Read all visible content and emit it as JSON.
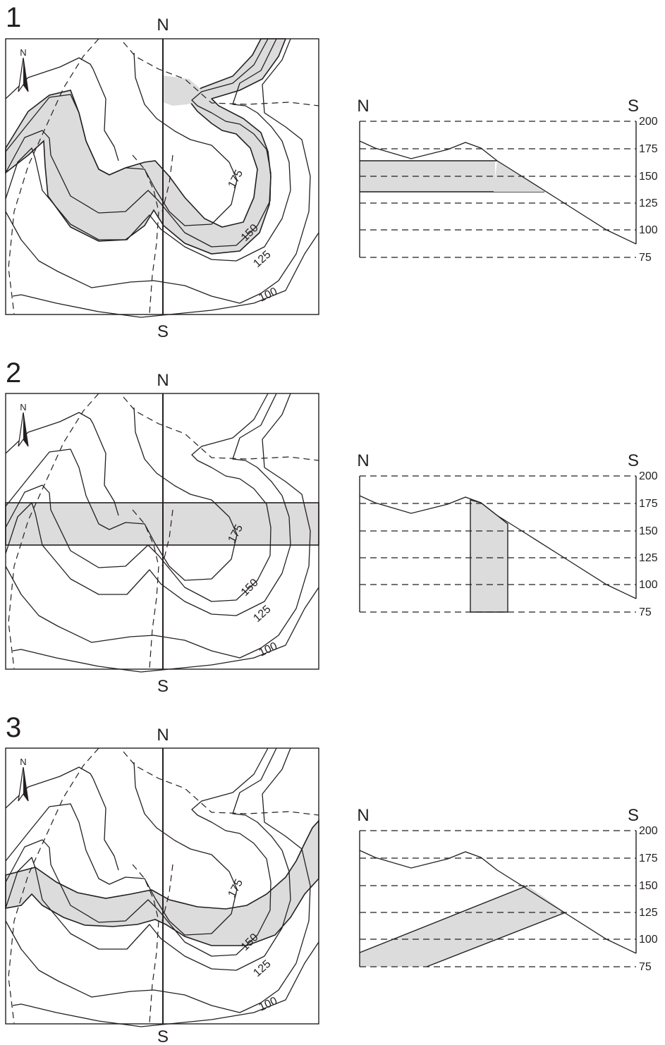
{
  "panels": [
    {
      "number": "1",
      "map": {
        "north": "N",
        "south": "S",
        "arrow": "N",
        "contour_labels": [
          "175",
          "150",
          "125",
          "100"
        ]
      },
      "profile": {
        "left": "N",
        "right": "S",
        "elevations": [
          "200",
          "175",
          "150",
          "125",
          "100",
          "75"
        ]
      },
      "layer": "horizontal"
    },
    {
      "number": "2",
      "map": {
        "north": "N",
        "south": "S",
        "arrow": "N",
        "contour_labels": [
          "175",
          "150",
          "125",
          "100"
        ]
      },
      "profile": {
        "left": "N",
        "right": "S",
        "elevations": [
          "200",
          "175",
          "150",
          "125",
          "100",
          "75"
        ]
      },
      "layer": "vertical"
    },
    {
      "number": "3",
      "map": {
        "north": "N",
        "south": "S",
        "arrow": "N",
        "contour_labels": [
          "175",
          "150",
          "125",
          "100"
        ]
      },
      "profile": {
        "left": "N",
        "right": "S",
        "elevations": [
          "200",
          "175",
          "150",
          "125",
          "100",
          "75"
        ]
      },
      "layer": "inclined"
    }
  ],
  "colors": {
    "ink": "#231f20",
    "layer_fill": "#dcdcdc",
    "background": "#ffffff"
  }
}
